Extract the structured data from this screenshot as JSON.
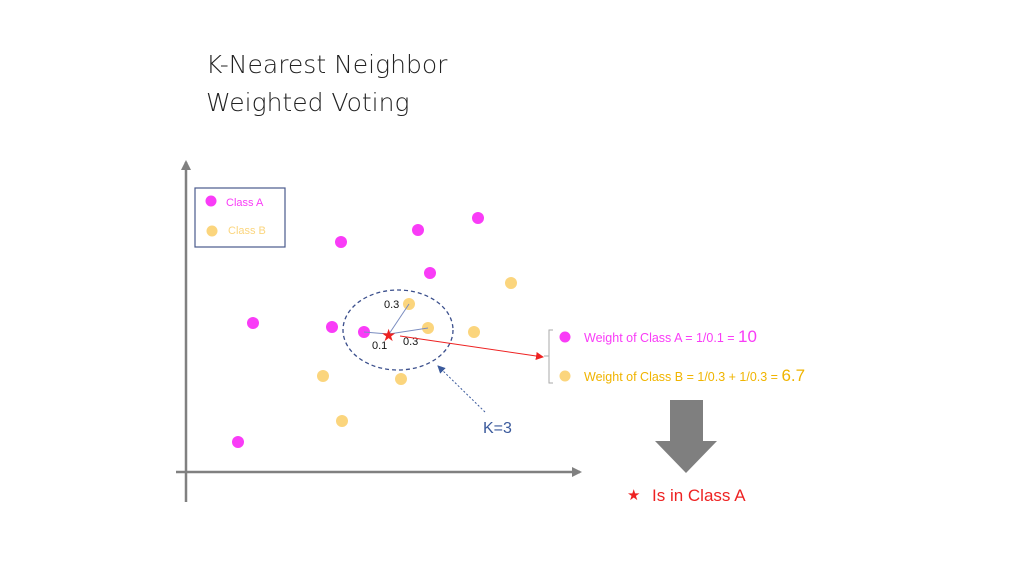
{
  "title": {
    "line1": "K-Nearest Neighbor",
    "line2": "Weighted Voting"
  },
  "legend": {
    "class_a": "Class A",
    "class_b": "Class B"
  },
  "colors": {
    "class_a": "#f93cf7",
    "class_b": "#fbd57d",
    "star": "#ee2222",
    "ellipse": "#3b4f8c",
    "k_label": "#3b5a9c",
    "arrow_gray": "#7f7f7f",
    "axis": "#808080"
  },
  "distances": {
    "d1": "0.3",
    "d2": "0.1",
    "d3": "0.3"
  },
  "k_label": "K=3",
  "weights": {
    "class_a_text": "Weight of Class A = 1/0.1 = ",
    "class_a_value": "10",
    "class_b_text": "Weight of Class B = 1/0.3 + 1/0.3 = ",
    "class_b_value": "6.7"
  },
  "result": {
    "star_symbol": "★",
    "text": "Is in Class A"
  }
}
